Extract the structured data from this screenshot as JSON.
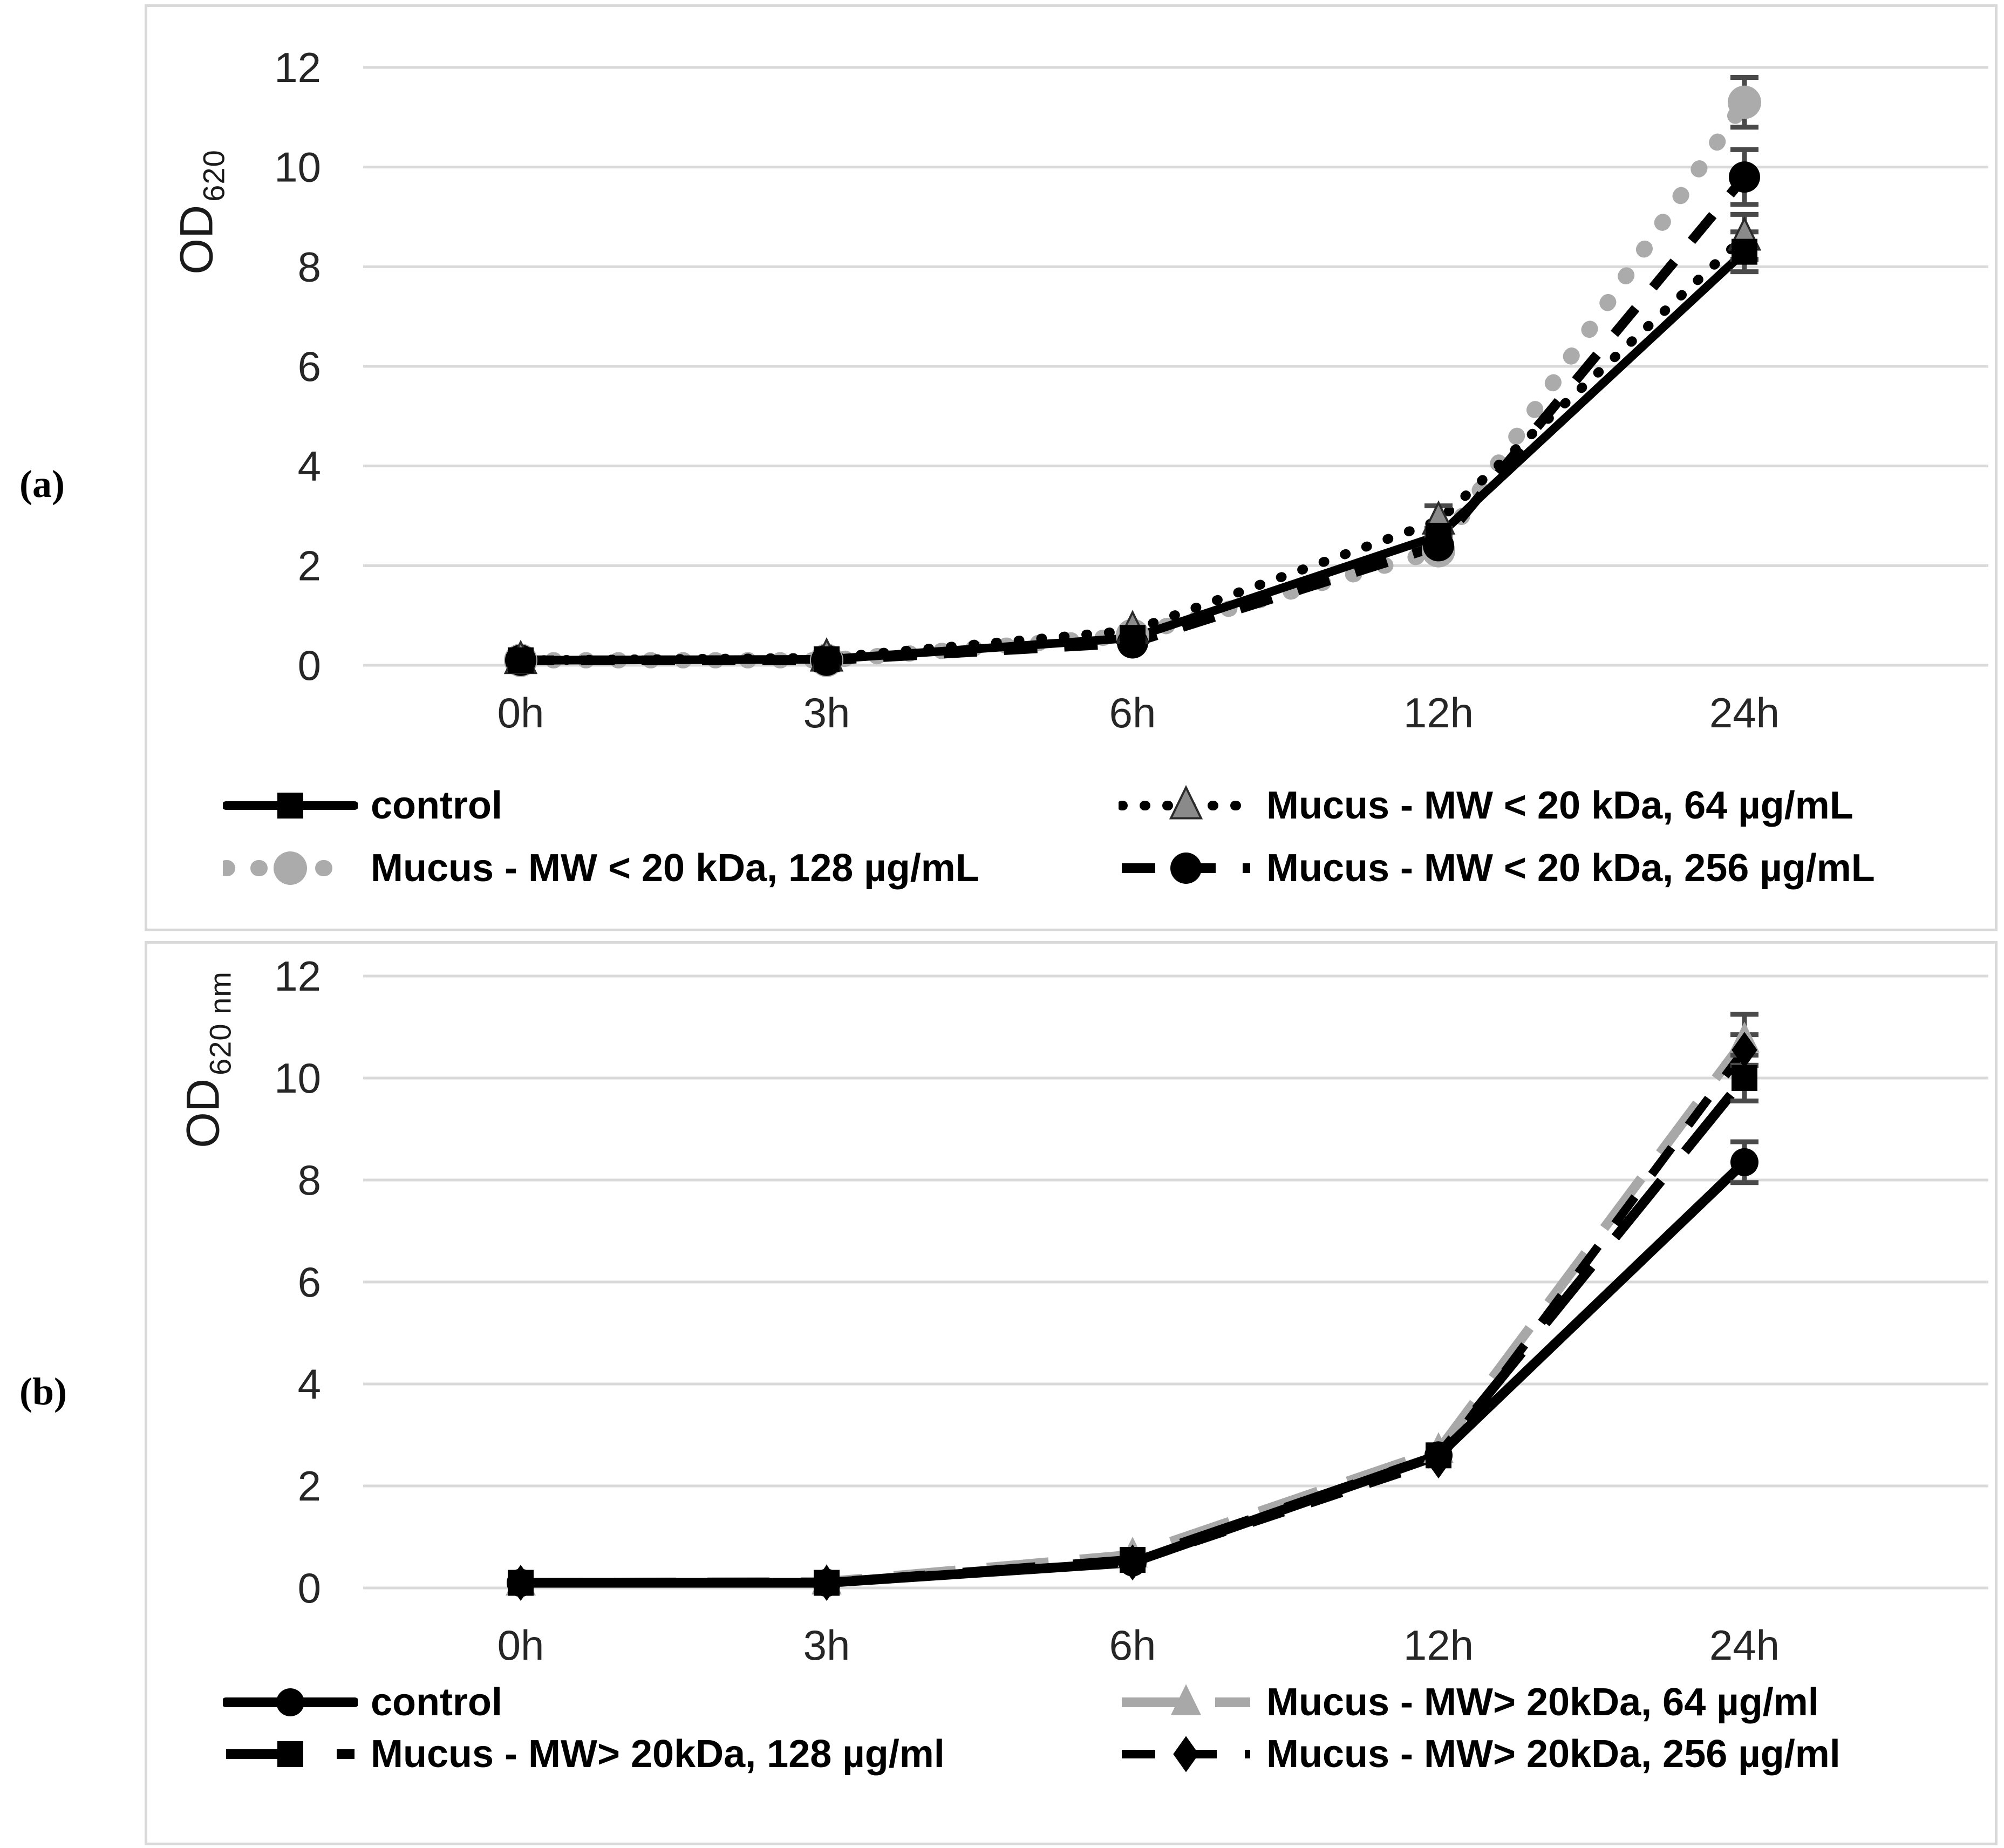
{
  "figure": {
    "background": "#ffffff",
    "panel_border_color": "#d9d9d9",
    "gridline_color": "#d9d9d9",
    "error_bar_color": "#4a4a4a",
    "tick_color": "#262626"
  },
  "panels": [
    {
      "label": "(a)"
    },
    {
      "label": "(b)"
    }
  ],
  "chart_data": [
    {
      "type": "line",
      "title": "",
      "xlabel": "",
      "ylabel_main": "OD",
      "ylabel_sub": "620",
      "categories": [
        "0h",
        "3h",
        "6h",
        "12h",
        "24h"
      ],
      "yticks": [
        12,
        10,
        8,
        6,
        4,
        2,
        0
      ],
      "ylim": [
        0,
        12
      ],
      "grid": true,
      "legend_position": "bottom, 2 columns x 2 rows",
      "series": [
        {
          "name": "control",
          "values": [
            0.1,
            0.12,
            0.55,
            2.6,
            8.3
          ],
          "errors": [
            0,
            0,
            0,
            0.15,
            0.4
          ],
          "marker": "square",
          "marker_color": "#000000",
          "marker_size": 48,
          "line_color": "#000000",
          "line_width": 16,
          "line_dash": "",
          "line_cap": "round"
        },
        {
          "name": "Mucus - MW < 20 kDa, 64 µg/mL",
          "values": [
            0.1,
            0.15,
            0.7,
            2.9,
            8.6
          ],
          "errors": [
            0,
            0,
            0,
            0.3,
            0.45
          ],
          "marker": "triangle",
          "marker_color": "#8a8a8a",
          "marker_stroke": "#2b2b2b",
          "marker_size": 56,
          "line_color": "#000000",
          "line_width": 18,
          "line_dash": "2 40",
          "line_cap": "round"
        },
        {
          "name": "Mucus - MW < 20 kDa, 128 µg/mL",
          "values": [
            0.1,
            0.1,
            0.6,
            2.3,
            11.3
          ],
          "errors": [
            0,
            0,
            0,
            0,
            0.5
          ],
          "marker": "circle",
          "marker_color": "#ababab",
          "marker_size": 62,
          "line_color": "#ababab",
          "line_width": 30,
          "line_dash": "2 58",
          "line_cap": "round"
        },
        {
          "name": "Mucus - MW < 20 kDa, 256 µg/mL",
          "values": [
            0.1,
            0.1,
            0.45,
            2.4,
            9.8
          ],
          "errors": [
            0,
            0,
            0,
            0,
            0.55
          ],
          "marker": "circle",
          "marker_color": "#000000",
          "marker_size": 58,
          "line_color": "#000000",
          "line_width": 18,
          "line_dash": "62 50",
          "line_cap": "butt"
        }
      ],
      "legend_order": [
        [
          0,
          1
        ],
        [
          2,
          3
        ]
      ]
    },
    {
      "type": "line",
      "title": "",
      "xlabel": "",
      "ylabel_main": "OD",
      "ylabel_sub": "620 nm",
      "categories": [
        "0h",
        "3h",
        "6h",
        "12h",
        "24h"
      ],
      "yticks": [
        12,
        10,
        8,
        6,
        4,
        2,
        0
      ],
      "ylim": [
        0,
        12
      ],
      "grid": true,
      "legend_position": "bottom, 2 columns x 2 rows",
      "series": [
        {
          "name": "control",
          "values": [
            0.1,
            0.1,
            0.5,
            2.6,
            8.35
          ],
          "errors": [
            0,
            0,
            0,
            0,
            0.4
          ],
          "marker": "circle",
          "marker_color": "#000000",
          "marker_size": 52,
          "line_color": "#000000",
          "line_width": 18,
          "line_dash": "",
          "line_cap": "round"
        },
        {
          "name": "Mucus - MW> 20kDa, 64 µg/ml",
          "values": [
            0.1,
            0.12,
            0.65,
            2.7,
            10.75
          ],
          "errors": [
            0,
            0,
            0,
            0,
            0.5
          ],
          "marker": "triangle",
          "marker_color": "#a8a8a8",
          "marker_size": 56,
          "line_color": "#a8a8a8",
          "line_width": 18,
          "line_dash": "115 58",
          "line_cap": "butt"
        },
        {
          "name": "Mucus - MW> 20kDa, 128 µg/ml",
          "values": [
            0.1,
            0.1,
            0.55,
            2.6,
            10.0
          ],
          "errors": [
            0,
            0,
            0,
            0,
            0.45
          ],
          "marker": "square",
          "marker_color": "#000000",
          "marker_size": 48,
          "line_color": "#000000",
          "line_width": 18,
          "line_dash": "135 70",
          "line_cap": "butt"
        },
        {
          "name": "Mucus - MW> 20kDa, 256 µg/ml",
          "values": [
            0.1,
            0.1,
            0.5,
            2.5,
            10.55
          ],
          "errors": [
            0,
            0,
            0,
            0,
            0.3
          ],
          "marker": "diamond",
          "marker_color": "#000000",
          "marker_size": 54,
          "line_color": "#000000",
          "line_width": 16,
          "line_dash": "62 52",
          "line_cap": "butt"
        }
      ],
      "legend_order": [
        [
          0,
          1
        ],
        [
          2,
          3
        ]
      ]
    }
  ]
}
